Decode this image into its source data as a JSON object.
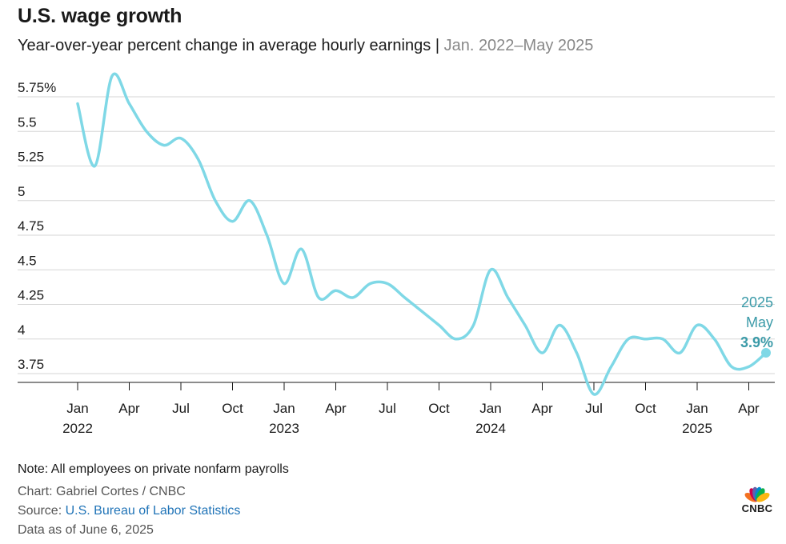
{
  "header": {
    "title": "U.S. wage growth",
    "subtitle": "Year-over-year percent change in average hourly earnings",
    "separator": "|",
    "range": "Jan. 2022–May 2025"
  },
  "chart_data": {
    "type": "line",
    "title": "U.S. wage growth",
    "subtitle": "Year-over-year percent change in average hourly earnings | Jan. 2022–May 2025",
    "xlabel": "",
    "ylabel": "",
    "ylim": [
      3.65,
      5.98
    ],
    "yticks": [
      3.75,
      4,
      4.25,
      4.5,
      4.75,
      5,
      5.25,
      5.5,
      5.75
    ],
    "ytick_labels": [
      "3.75",
      "4",
      "4.25",
      "4.5",
      "4.75",
      "5",
      "5.25",
      "5.5",
      "5.75%"
    ],
    "xtick_month_labels": [
      "Jan",
      "Apr",
      "Jul",
      "Oct",
      "Jan",
      "Apr",
      "Jul",
      "Oct",
      "Jan",
      "Apr",
      "Jul",
      "Oct",
      "Jan",
      "Apr"
    ],
    "xtick_year_labels": [
      "2022",
      "2023",
      "2024",
      "2025"
    ],
    "grid": "horizontal",
    "line_color": "#7fd8e6",
    "annotation_color": "#3a9aa8",
    "x": [
      "2022-01",
      "2022-02",
      "2022-03",
      "2022-04",
      "2022-05",
      "2022-06",
      "2022-07",
      "2022-08",
      "2022-09",
      "2022-10",
      "2022-11",
      "2022-12",
      "2023-01",
      "2023-02",
      "2023-03",
      "2023-04",
      "2023-05",
      "2023-06",
      "2023-07",
      "2023-08",
      "2023-09",
      "2023-10",
      "2023-11",
      "2023-12",
      "2024-01",
      "2024-02",
      "2024-03",
      "2024-04",
      "2024-05",
      "2024-06",
      "2024-07",
      "2024-08",
      "2024-09",
      "2024-10",
      "2024-11",
      "2024-12",
      "2025-01",
      "2025-02",
      "2025-03",
      "2025-04",
      "2025-05"
    ],
    "series": [
      {
        "values": [
          5.7,
          5.25,
          5.9,
          5.7,
          5.5,
          5.4,
          5.45,
          5.3,
          5.0,
          4.85,
          5.0,
          4.75,
          4.4,
          4.65,
          4.3,
          4.35,
          4.3,
          4.4,
          4.4,
          4.3,
          4.2,
          4.1,
          4.0,
          4.1,
          4.5,
          4.3,
          4.1,
          3.9,
          4.1,
          3.9,
          3.6,
          3.8,
          4.0,
          4.0,
          4.0,
          3.9,
          4.1,
          4.0,
          3.8,
          3.8,
          3.9
        ]
      }
    ],
    "annotation": {
      "year": "2025",
      "month": "May",
      "value": "3.9%"
    }
  },
  "footer": {
    "note": "Note: All employees on private nonfarm payrolls",
    "credit": "Chart: Gabriel Cortes / CNBC",
    "source_prefix": "Source: ",
    "source_link": "U.S. Bureau of Labor Statistics",
    "as_of": "Data as of June 6, 2025"
  },
  "logo": {
    "text": "CNBC",
    "colors": [
      "#f37021",
      "#cc004c",
      "#6460aa",
      "#0089d0",
      "#0db14b",
      "#fcb711"
    ]
  }
}
